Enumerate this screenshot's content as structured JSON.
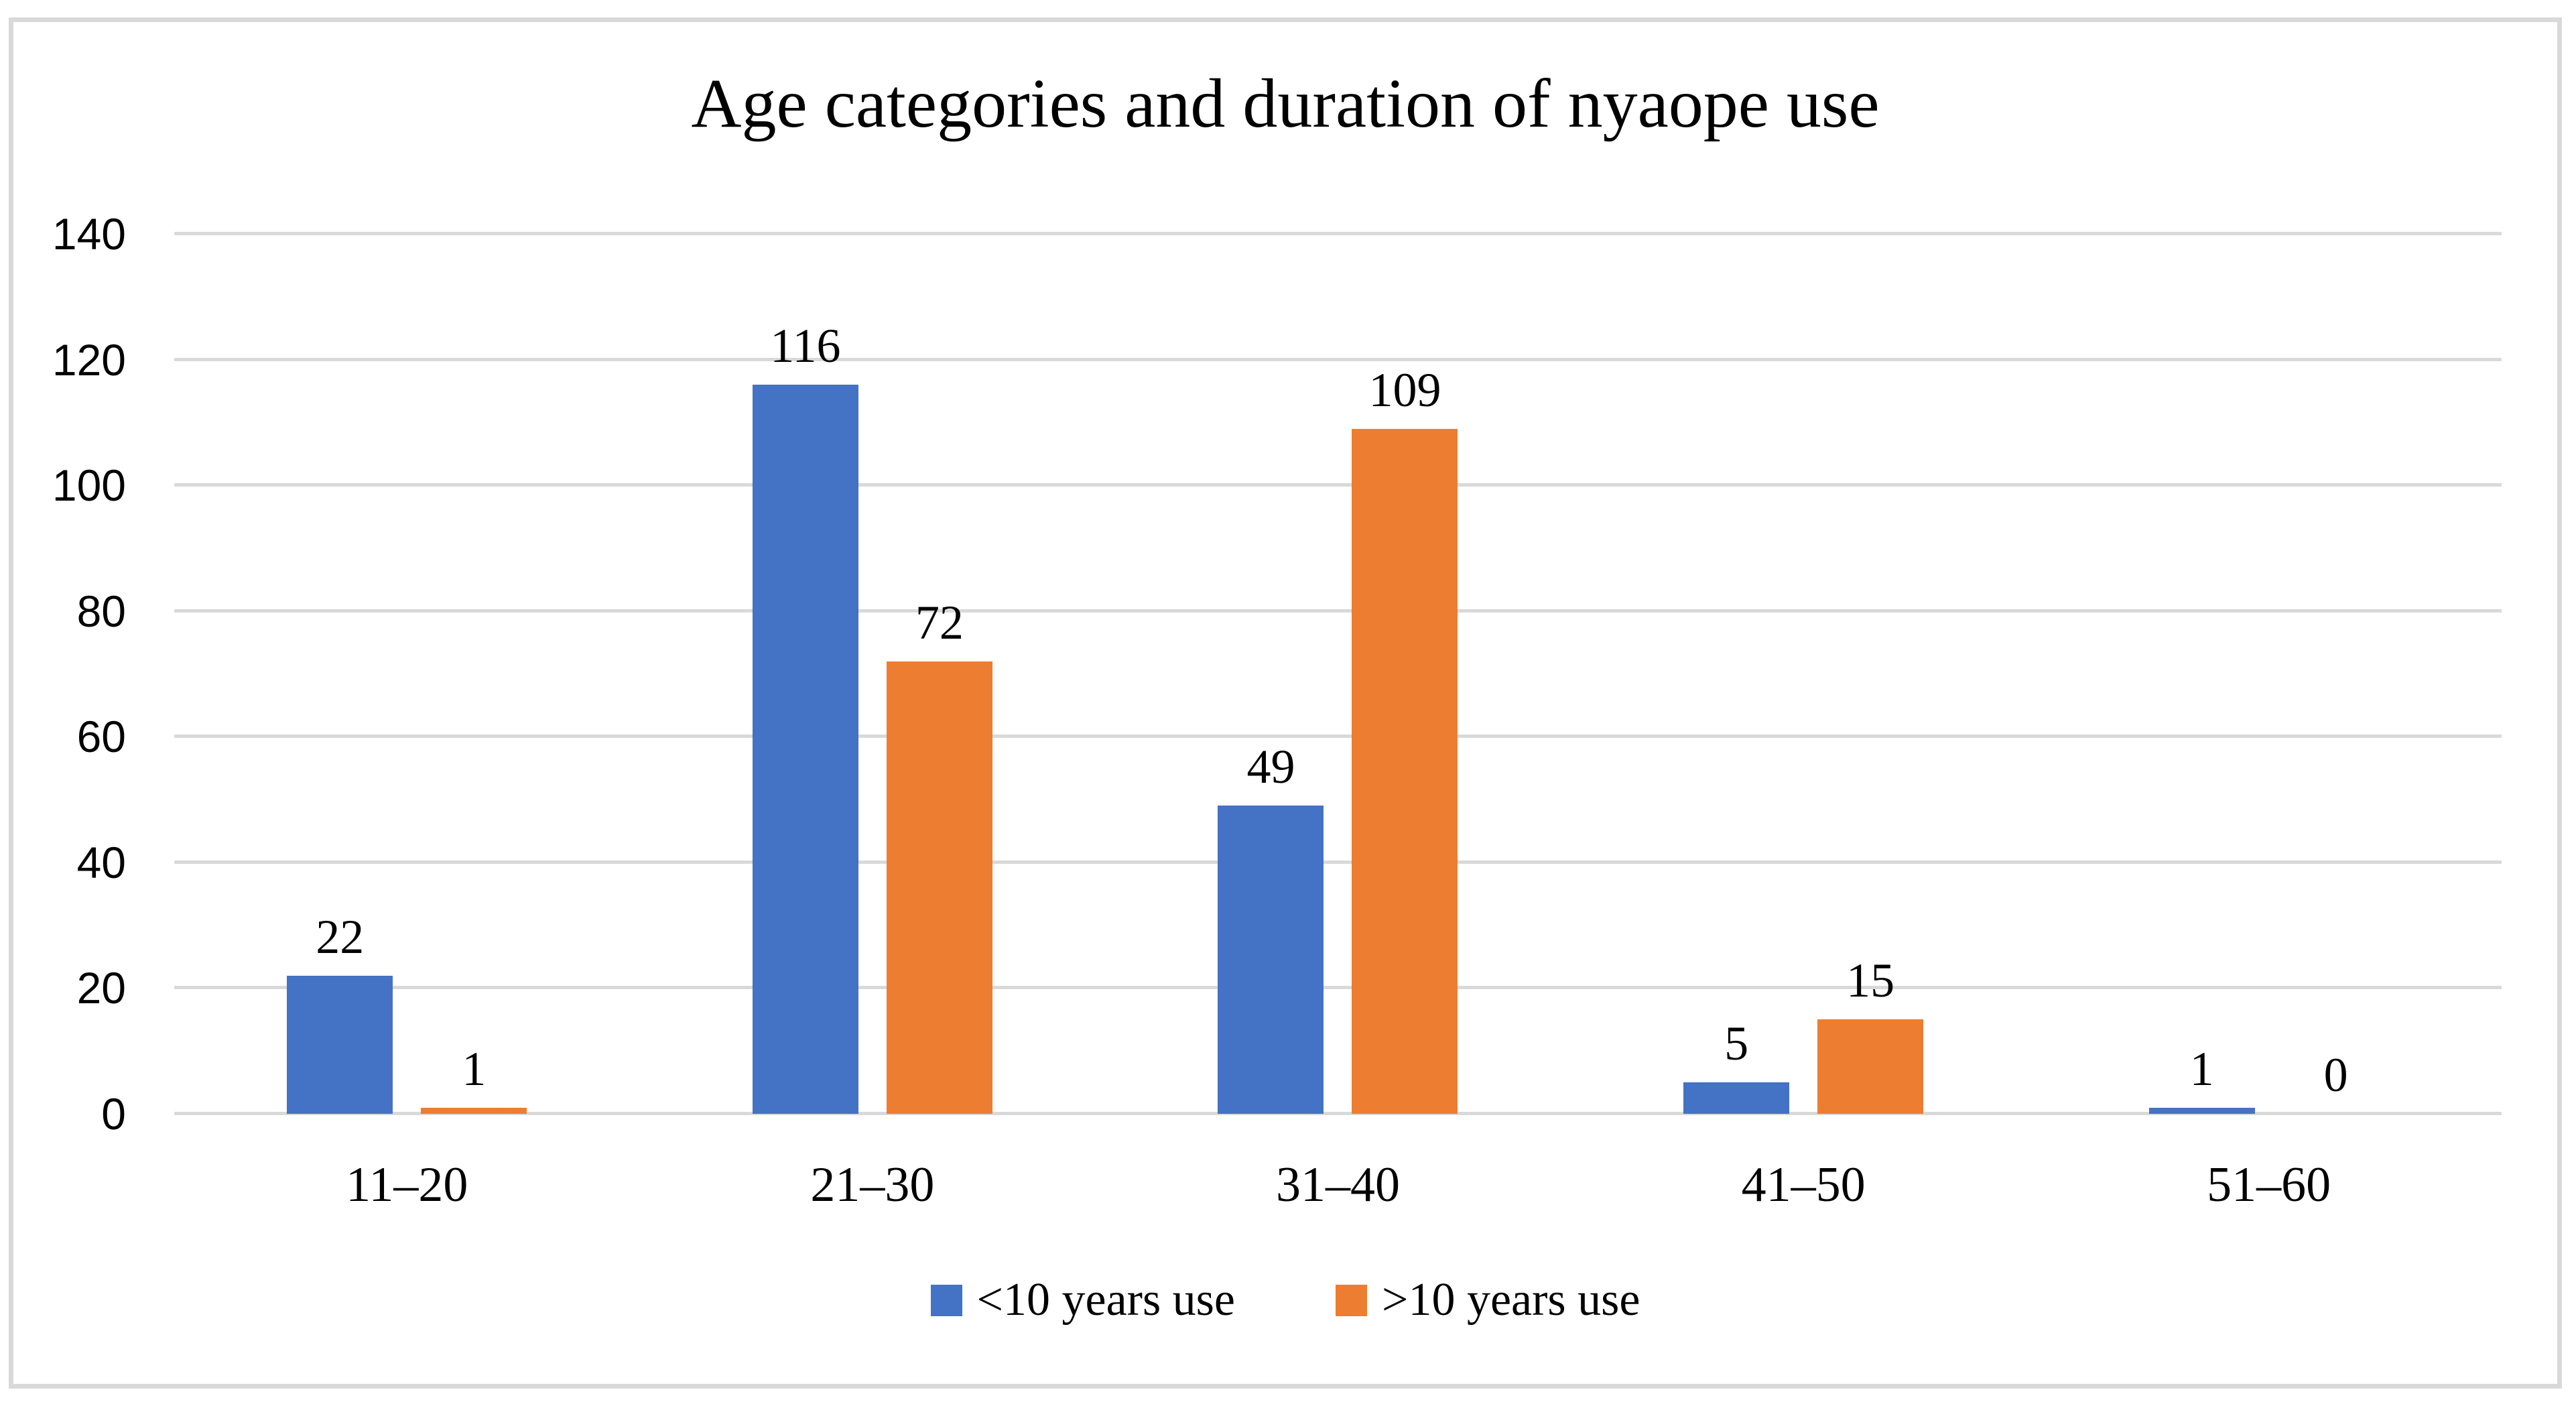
{
  "chart_data": {
    "type": "bar",
    "title": "Age categories and duration of nyaope use",
    "categories": [
      "11–20",
      "21–30",
      "31–40",
      "41–50",
      "51–60"
    ],
    "series": [
      {
        "name": "<10 years use",
        "color": "#4472c4",
        "values": [
          22,
          116,
          49,
          5,
          1
        ]
      },
      {
        "name": ">10 years use",
        "color": "#ed7d31",
        "values": [
          1,
          72,
          109,
          15,
          0
        ]
      }
    ],
    "ylim": [
      0,
      140
    ],
    "yticks": [
      0,
      20,
      40,
      60,
      80,
      100,
      120,
      140
    ],
    "grid": true,
    "data_labels": true,
    "legend_position": "bottom",
    "gridline_color": "#d9d9d9",
    "background_color": "#ffffff"
  }
}
